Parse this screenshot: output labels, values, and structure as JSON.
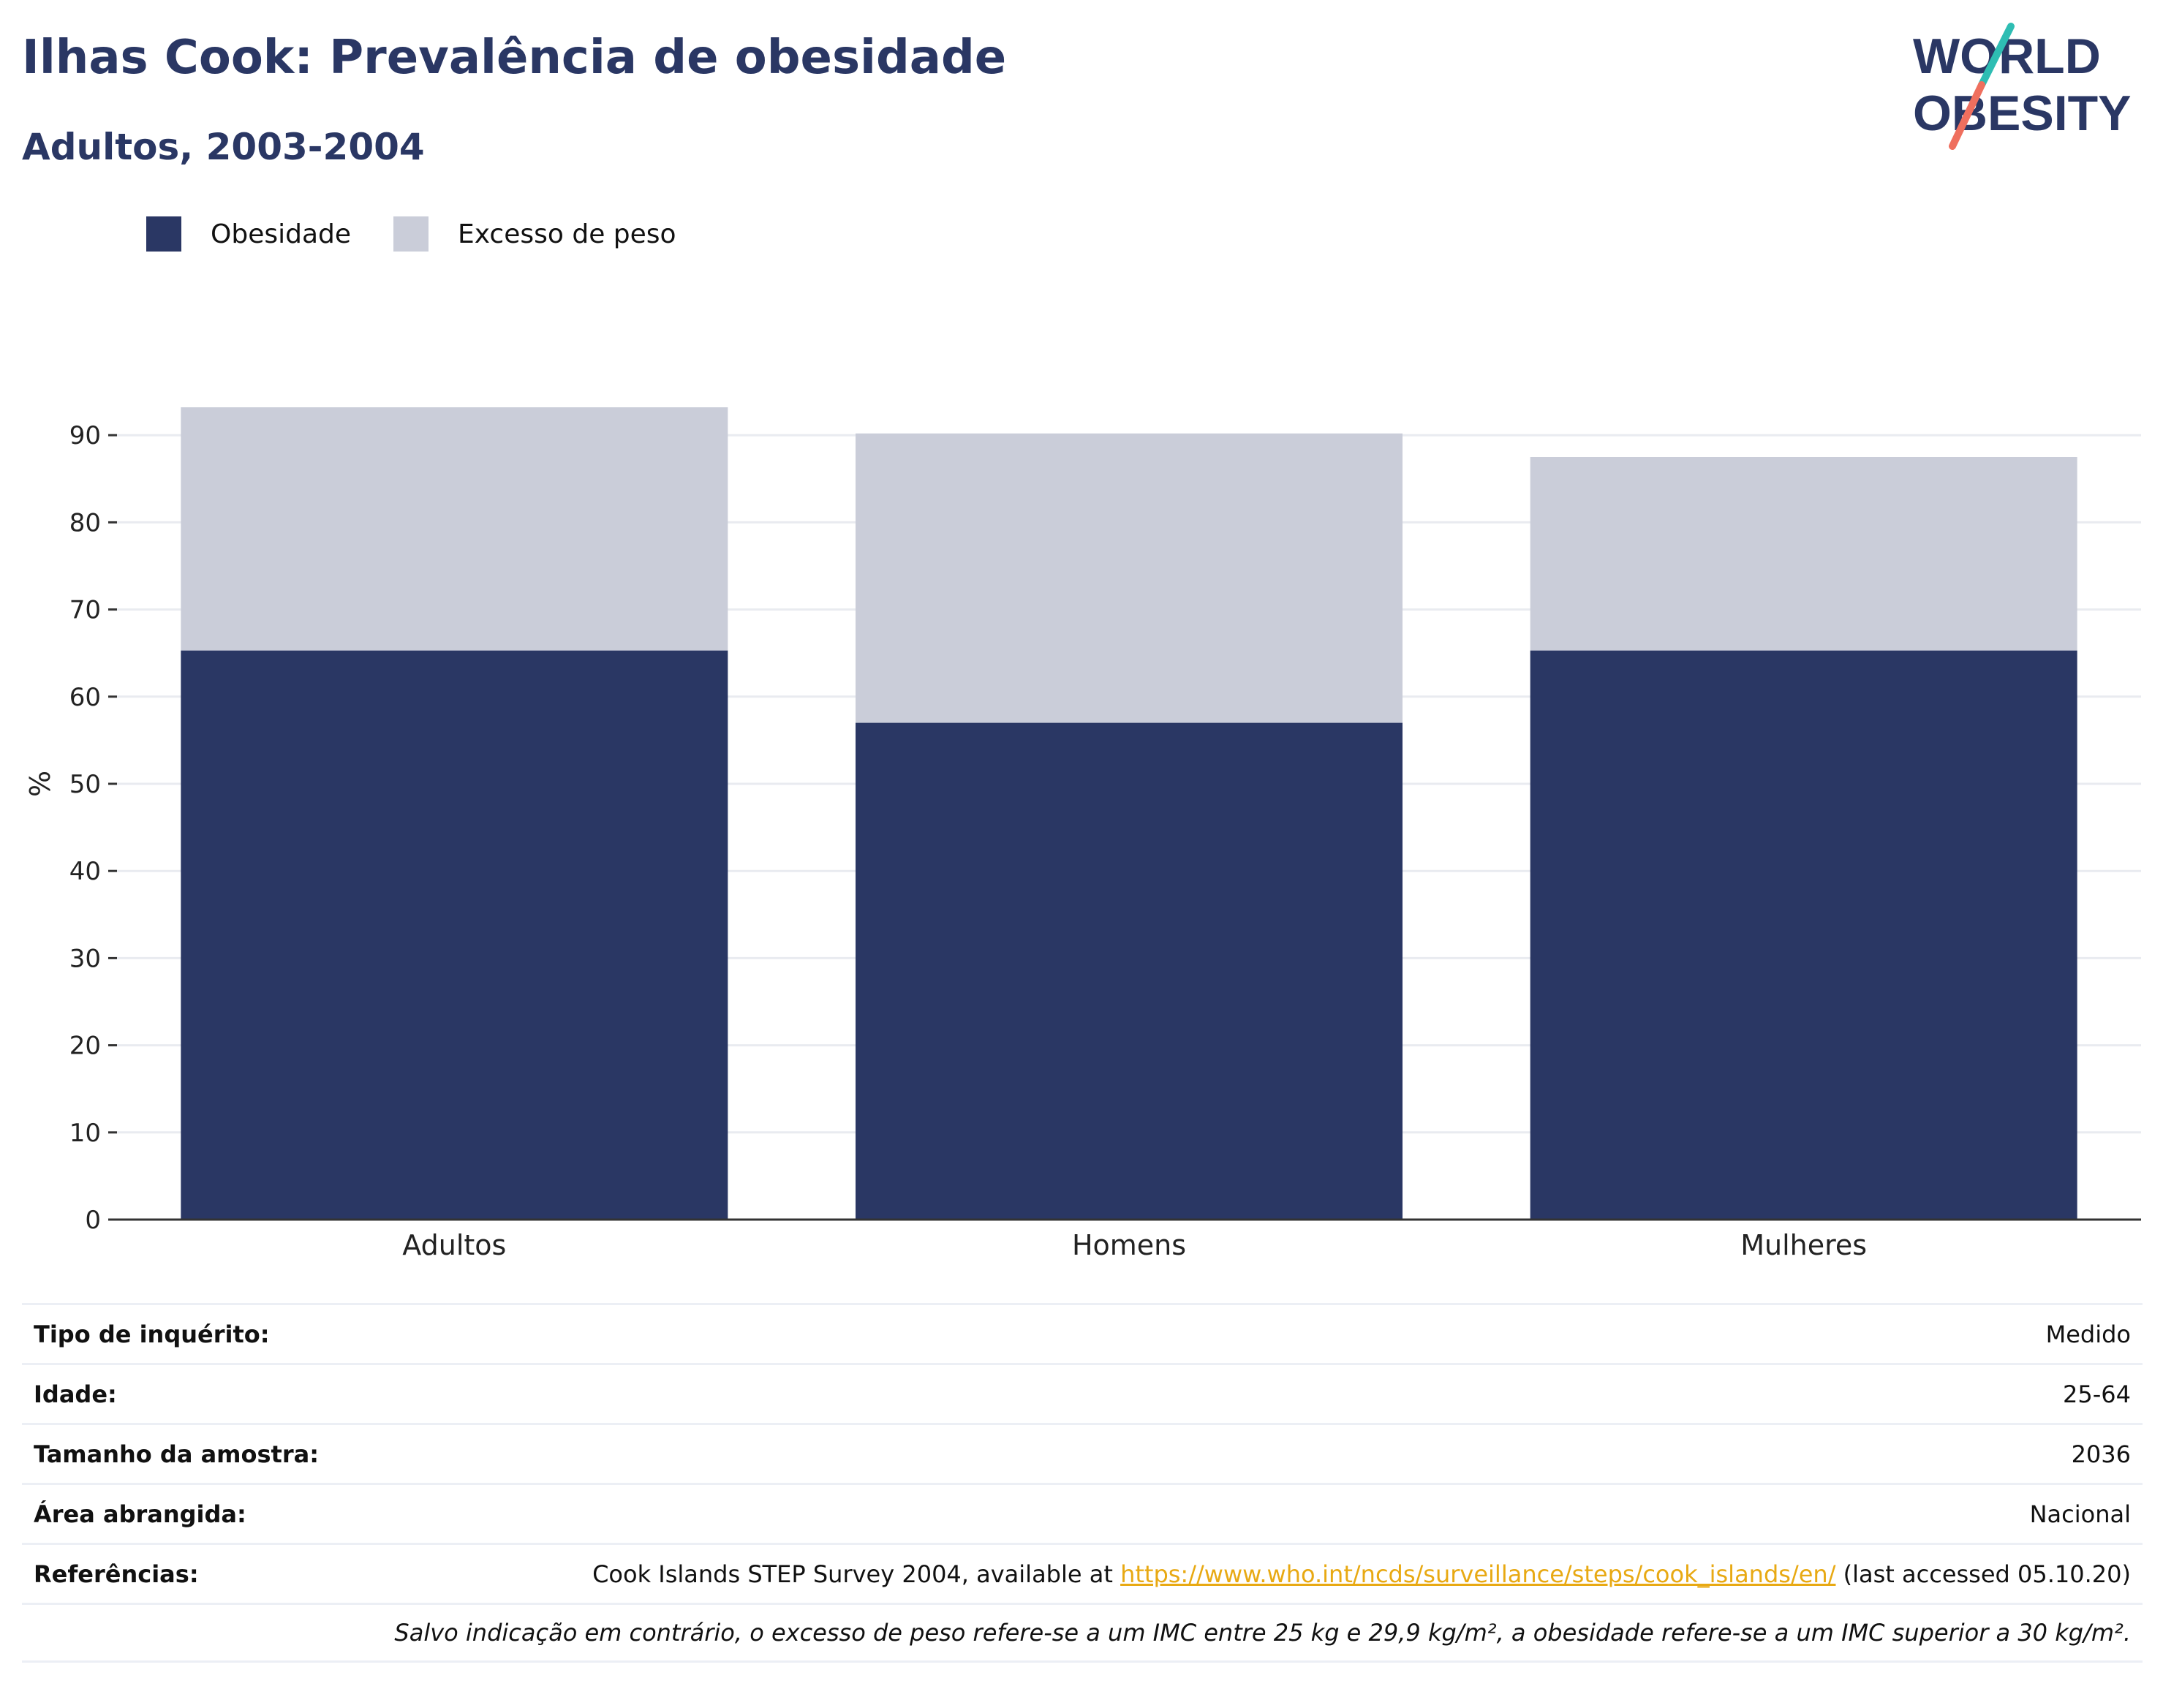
{
  "header": {
    "title": "Ilhas Cook: Prevalência de obesidade",
    "subtitle": "Adultos, 2003-2004",
    "logo_line1": "WORLD",
    "logo_line2": "OBESITY"
  },
  "colors": {
    "obesity": "#2a3764",
    "overweight": "#cacdd9",
    "title": "#2a3764",
    "link": "#e8a913",
    "logo_teal": "#2ebdb3",
    "logo_coral": "#ef6f5e"
  },
  "chart_data": {
    "type": "bar",
    "stacked": true,
    "categories": [
      "Adultos",
      "Homens",
      "Mulheres"
    ],
    "series": [
      {
        "name": "Obesidade",
        "values": [
          65.3,
          57.0,
          65.3
        ]
      },
      {
        "name": "Excesso de peso",
        "values": [
          27.9,
          33.2,
          22.2
        ]
      }
    ],
    "ylabel": "%",
    "yticks": [
      0,
      10,
      20,
      30,
      40,
      50,
      60,
      70,
      80,
      90
    ],
    "ylim": [
      0,
      95
    ],
    "grid": true,
    "legend_position": "top-left"
  },
  "info": {
    "rows": [
      {
        "label": "Tipo de inquérito:",
        "value": "Medido"
      },
      {
        "label": "Idade:",
        "value": "25-64"
      },
      {
        "label": "Tamanho da amostra:",
        "value": "2036"
      },
      {
        "label": "Área abrangida:",
        "value": "Nacional"
      }
    ],
    "references_label": "Referências:",
    "references_prefix": "Cook Islands STEP Survey 2004, available at ",
    "references_link": "https://www.who.int/ncds/surveillance/steps/cook_islands/en/",
    "references_suffix": " (last accessed 05.10.20)",
    "note": "Salvo indicação em contrário, o excesso de peso refere-se a um IMC entre 25 kg e 29,9 kg/m², a obesidade refere-se a um IMC superior a 30 kg/m²."
  }
}
